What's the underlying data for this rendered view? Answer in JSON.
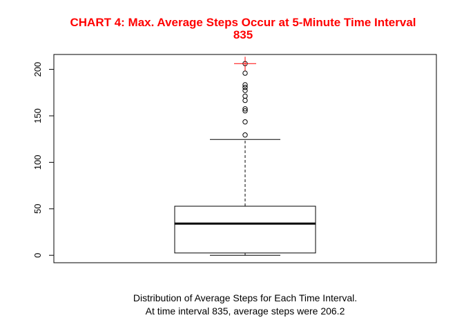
{
  "chart_data": {
    "type": "boxplot",
    "title": [
      "CHART 4: Max. Average Steps Occur at 5-Minute Time Interval",
      "835"
    ],
    "xlabel": [
      "Distribution of Average Steps for Each Time Interval.",
      "At time interval 835, average steps were 206.2"
    ],
    "ylabel": "",
    "ylim": [
      -8,
      216
    ],
    "yticks": [
      0,
      50,
      100,
      150,
      200
    ],
    "grid": false,
    "stats": {
      "min": 0,
      "q1": 2.5,
      "median": 34.1,
      "q3": 52.8,
      "whisker_high": 124.6
    },
    "outliers": [
      129.4,
      143.5,
      155.4,
      157.5,
      166.6,
      171.2,
      177.3,
      180.6,
      183.4,
      195.9,
      206.2
    ],
    "highlight": {
      "label": "max",
      "value": 206.2
    },
    "colors": {
      "title": "#ff0000",
      "highlight": "#ff0000",
      "box": "#000000"
    }
  }
}
